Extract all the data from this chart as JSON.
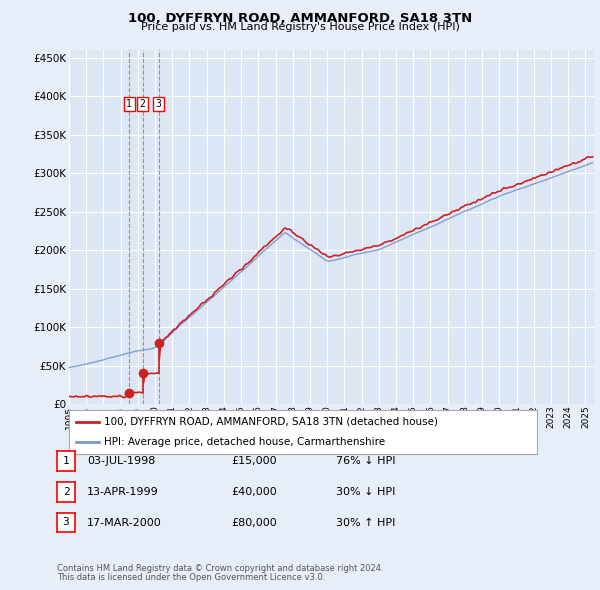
{
  "title1": "100, DYFFRYN ROAD, AMMANFORD, SA18 3TN",
  "title2": "Price paid vs. HM Land Registry's House Price Index (HPI)",
  "background_color": "#e8eef8",
  "plot_bg_color": "#dce6f5",
  "grid_color": "#c8d4e8",
  "legend1_label": "100, DYFFRYN ROAD, AMMANFORD, SA18 3TN (detached house)",
  "legend2_label": "HPI: Average price, detached house, Carmarthenshire",
  "line1_color": "#cc2222",
  "line2_color": "#7799cc",
  "purchases": [
    {
      "label": "1",
      "date": "03-JUL-1998",
      "price": 15000,
      "pct": "76% ↓ HPI",
      "year": 1998.5
    },
    {
      "label": "2",
      "date": "13-APR-1999",
      "price": 40000,
      "pct": "30% ↓ HPI",
      "year": 1999.28
    },
    {
      "label": "3",
      "date": "17-MAR-2000",
      "price": 80000,
      "pct": "30% ↑ HPI",
      "year": 2000.21
    }
  ],
  "footer1": "Contains HM Land Registry data © Crown copyright and database right 2024.",
  "footer2": "This data is licensed under the Open Government Licence v3.0.",
  "ylim": [
    0,
    460000
  ],
  "xlim_start": 1995.0,
  "xlim_end": 2025.5,
  "row_data": [
    [
      "1",
      "03-JUL-1998",
      "£15,000",
      "76% ↓ HPI"
    ],
    [
      "2",
      "13-APR-1999",
      "£40,000",
      "30% ↓ HPI"
    ],
    [
      "3",
      "17-MAR-2000",
      "£80,000",
      "30% ↑ HPI"
    ]
  ]
}
